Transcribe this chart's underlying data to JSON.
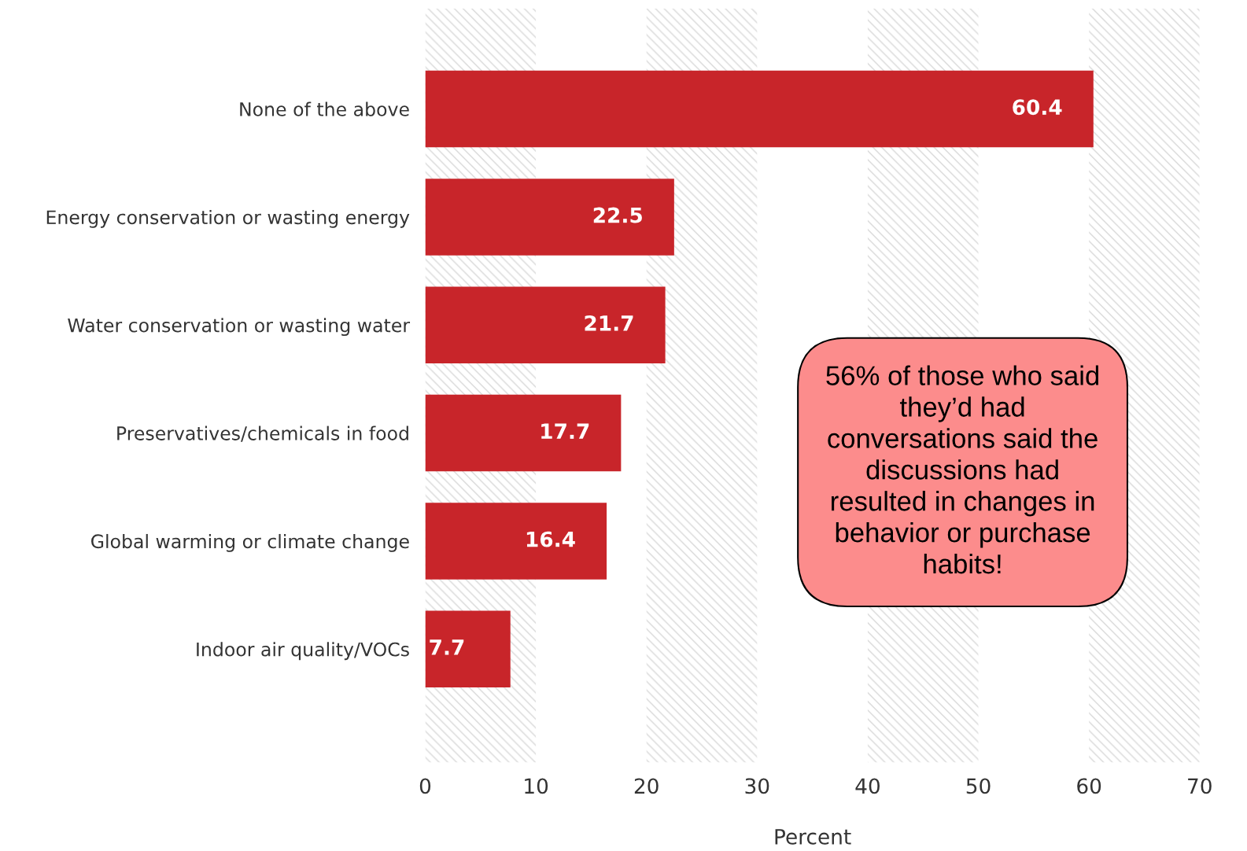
{
  "chart_data": {
    "type": "bar",
    "orientation": "horizontal",
    "xlabel": "Percent",
    "categories": [
      "None of the above",
      "Energy conservation or wasting energy",
      "Water conservation or wasting water",
      "Preservatives/chemicals in food",
      "Global warming or climate change",
      "Indoor air quality/VOCs"
    ],
    "values": [
      60.4,
      22.5,
      21.7,
      17.7,
      16.4,
      7.7
    ],
    "color": "#c8252a",
    "data_labels": true,
    "xlim": [
      0,
      70
    ],
    "xticks": [
      0,
      10,
      20,
      30,
      40,
      50,
      60,
      70
    ],
    "grid": false,
    "bands": [
      {
        "axis": "x",
        "from": 0,
        "to": 10,
        "color": "#d9d9d9"
      },
      {
        "axis": "x",
        "from": 20,
        "to": 30,
        "color": "#d9d9d9"
      },
      {
        "axis": "x",
        "from": 40,
        "to": 50,
        "color": "#d9d9d9"
      },
      {
        "axis": "x",
        "from": 60,
        "to": 70,
        "color": "#d9d9d9"
      }
    ],
    "annotations": [
      "56% of those who said\nthey’d had\nconversations said the\ndiscussions had\nresulted in changes in\nbehavior or purchase\nhabits!"
    ]
  }
}
